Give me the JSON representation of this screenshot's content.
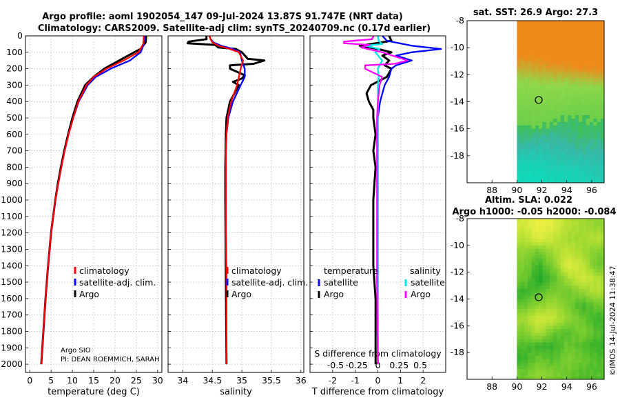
{
  "header": {
    "title_line1": "Argo profile: aoml 1902054_147 09-Jul-2024 13.87S 91.747E (NRT data)",
    "title_line2": "Climatology: CARS2009. Satellite-adj clim: synTS_20240709.nc (0.17d earlier)"
  },
  "credit": {
    "line1": "Argo SIO",
    "line2": "PI: DEAN ROEMMICH, SARAH"
  },
  "stamp": "©IMOS 14-Jul-2024 11:38:47",
  "chart_data": [
    {
      "type": "line",
      "xlabel": "temperature (deg C)",
      "ylim": [
        2050,
        0
      ],
      "xlim": [
        -1,
        31
      ],
      "xticks": [
        0,
        5,
        10,
        15,
        20,
        25,
        30
      ],
      "yticks": [
        0,
        100,
        200,
        300,
        400,
        500,
        600,
        700,
        800,
        900,
        1000,
        1100,
        1200,
        1300,
        1400,
        1500,
        1600,
        1700,
        1800,
        1900,
        2000
      ],
      "grid": true,
      "legend": {
        "position": "bottom-right",
        "entries": [
          "climatology",
          "satellite-adj. clim.",
          "Argo"
        ]
      },
      "series": [
        {
          "name": "climatology",
          "color": "#ff0000",
          "depth": [
            0,
            50,
            100,
            150,
            200,
            250,
            300,
            400,
            500,
            600,
            700,
            800,
            900,
            1000,
            1200,
            1400,
            1600,
            1800,
            2000
          ],
          "values": [
            26.8,
            26.6,
            25.5,
            22.0,
            18.0,
            15.0,
            13.3,
            11.4,
            10.2,
            9.1,
            8.2,
            7.4,
            6.7,
            6.0,
            5.0,
            4.3,
            3.7,
            3.2,
            2.7
          ]
        },
        {
          "name": "satellite-adj. clim.",
          "color": "#0000ff",
          "depth": [
            0,
            50,
            100,
            150,
            200,
            250,
            300,
            400,
            500,
            600,
            700,
            800,
            900,
            1000,
            1200,
            1400,
            1600,
            1800,
            2000
          ],
          "values": [
            27.0,
            26.8,
            26.0,
            23.5,
            19.0,
            15.5,
            13.6,
            11.5,
            10.2,
            9.1,
            8.2,
            7.4,
            6.7,
            6.0,
            5.0,
            4.3,
            3.7,
            3.2,
            2.7
          ]
        },
        {
          "name": "Argo",
          "color": "#000000",
          "depth": [
            0,
            40,
            80,
            100,
            150,
            200,
            250,
            300,
            400,
            500,
            600,
            700,
            800,
            900,
            1000,
            1200,
            1400,
            1600,
            1800,
            2000
          ],
          "values": [
            27.3,
            27.2,
            26.0,
            24.5,
            21.0,
            17.5,
            15.0,
            13.0,
            11.2,
            10.0,
            9.0,
            8.1,
            7.3,
            6.6,
            6.0,
            5.0,
            4.3,
            3.7,
            3.2,
            2.7
          ]
        }
      ]
    },
    {
      "type": "line",
      "xlabel": "salinity",
      "ylim": [
        2050,
        0
      ],
      "xlim": [
        33.75,
        36.05
      ],
      "xticks": [
        34,
        34.5,
        35,
        35.5,
        36
      ],
      "grid": true,
      "legend": {
        "position": "bottom-right",
        "entries": [
          "climatology",
          "satellite-adj. clim.",
          "Argo"
        ]
      },
      "series": [
        {
          "name": "climatology",
          "color": "#ff0000",
          "depth": [
            0,
            20,
            40,
            60,
            80,
            100,
            150,
            200,
            250,
            300,
            400,
            500,
            600,
            700,
            800,
            1000,
            1200,
            1500,
            2000
          ],
          "values": [
            34.45,
            34.47,
            34.5,
            34.6,
            34.8,
            34.95,
            35.02,
            34.98,
            34.95,
            34.92,
            34.82,
            34.76,
            34.74,
            34.73,
            34.73,
            34.73,
            34.73,
            34.74,
            34.74
          ]
        },
        {
          "name": "satellite-adj. clim.",
          "color": "#0000ff",
          "depth": [
            0,
            20,
            40,
            60,
            80,
            100,
            150,
            200,
            250,
            300,
            400,
            500,
            600,
            700,
            800,
            1000,
            1200,
            1500,
            2000
          ],
          "values": [
            34.45,
            34.47,
            34.52,
            34.65,
            34.85,
            34.97,
            35.0,
            35.05,
            35.05,
            34.98,
            34.85,
            34.77,
            34.74,
            34.73,
            34.73,
            34.73,
            34.73,
            34.74,
            34.74
          ]
        },
        {
          "name": "Argo",
          "color": "#000000",
          "depth": [
            0,
            20,
            35,
            45,
            55,
            70,
            80,
            100,
            140,
            150,
            170,
            180,
            200,
            240,
            260,
            280,
            300,
            400,
            500,
            600,
            800,
            1000,
            1500,
            2000
          ],
          "values": [
            34.4,
            34.4,
            34.1,
            34.08,
            34.55,
            34.6,
            34.9,
            35.0,
            35.1,
            35.38,
            35.2,
            34.8,
            34.8,
            35.05,
            35.0,
            34.85,
            34.95,
            34.8,
            34.74,
            34.73,
            34.72,
            34.72,
            34.73,
            34.74
          ]
        }
      ]
    },
    {
      "type": "line",
      "xlabel": "T difference from climatology",
      "top_axis_label": "S difference from climatology",
      "ylim": [
        2050,
        0
      ],
      "xlim": [
        -3,
        3
      ],
      "xticks": [
        -2,
        -1,
        0,
        1,
        2
      ],
      "top_xlim": [
        -0.8,
        0.8
      ],
      "top_xticks": [
        -0.5,
        -0.25,
        0,
        0.25,
        0.5
      ],
      "top_xtick_labels": [
        "-0.5",
        "-0.25",
        "0",
        "0.25",
        "0.5"
      ],
      "grid": true,
      "legend_temperature": {
        "heading": "temperature",
        "position": "bottom-left",
        "entries": [
          "satellite",
          "Argo"
        ]
      },
      "legend_salinity": {
        "heading": "salinity",
        "position": "bottom-right",
        "entries": [
          "satellite",
          "Argo"
        ]
      },
      "series": [
        {
          "name": "satellite",
          "group": "temperature",
          "color": "#0000ff",
          "axis": "T",
          "depth": [
            0,
            30,
            60,
            80,
            100,
            120,
            150,
            180,
            200,
            250,
            300,
            350,
            400,
            500,
            600,
            800,
            1000,
            2000
          ],
          "values": [
            0.2,
            0.4,
            1.5,
            2.8,
            1.5,
            0.8,
            1.5,
            0.8,
            0.6,
            0.5,
            0.3,
            0.2,
            0.1,
            0,
            0,
            0,
            0,
            0
          ]
        },
        {
          "name": "Argo",
          "group": "temperature",
          "color": "#000000",
          "axis": "T",
          "depth": [
            0,
            30,
            50,
            60,
            80,
            100,
            120,
            150,
            180,
            200,
            250,
            300,
            350,
            400,
            450,
            500,
            600,
            700,
            800,
            1000,
            1200,
            1400,
            1600,
            1800,
            2000
          ],
          "values": [
            0.5,
            0.6,
            -0.3,
            -0.8,
            0,
            0.6,
            0.2,
            0.5,
            0.3,
            0.6,
            0.4,
            -0.3,
            -0.5,
            -0.4,
            -0.2,
            -0.2,
            -0.1,
            -0.2,
            -0.1,
            -0.2,
            -0.2,
            -0.2,
            -0.1,
            -0.1,
            -0.1
          ]
        },
        {
          "name": "satellite",
          "group": "salinity",
          "color": "#00e5ee",
          "axis": "S",
          "depth": [
            0,
            30,
            50,
            60,
            80,
            100,
            150,
            200,
            250,
            300,
            400,
            500,
            600,
            800,
            1000,
            2000
          ],
          "values": [
            0.0,
            0.01,
            0.05,
            -0.15,
            0.02,
            -0.03,
            0.05,
            0.0,
            0.01,
            0.0,
            0.0,
            0.0,
            0.0,
            0.0,
            0.0,
            0.0
          ]
        },
        {
          "name": "Argo",
          "group": "salinity",
          "color": "#ff00ff",
          "axis": "S",
          "depth": [
            0,
            20,
            35,
            45,
            55,
            70,
            100,
            150,
            170,
            180,
            200,
            250,
            300,
            400,
            500,
            600,
            800,
            1000,
            1500,
            2000
          ],
          "values": [
            -0.05,
            -0.07,
            -0.4,
            -0.4,
            -0.1,
            -0.2,
            0.05,
            0.35,
            0.2,
            -0.15,
            -0.15,
            0.05,
            0.02,
            0.0,
            -0.01,
            -0.01,
            -0.01,
            -0.01,
            -0.01,
            0.0
          ]
        }
      ]
    },
    {
      "type": "heatmap",
      "title": "sat. SST: 26.9 Argo: 27.3",
      "xlim": [
        86,
        97
      ],
      "ylim": [
        -20,
        -8
      ],
      "xticks": [
        88,
        90,
        92,
        94,
        96
      ],
      "yticks": [
        -18,
        -16,
        -14,
        -12,
        -10,
        -8
      ],
      "float_position": [
        91.75,
        -13.87
      ],
      "rows_lat": [
        -8.5,
        -9.5,
        -10.5,
        -11.5,
        -12.5,
        -13.5,
        -14.5,
        -15.5,
        -16.5,
        -17.5,
        -18.5,
        -19.5
      ],
      "values": [
        [
          29.0,
          29.1,
          29.2,
          29.3,
          29.3,
          29.4
        ],
        [
          28.8,
          28.9,
          29.0,
          29.1,
          29.2,
          29.3
        ],
        [
          28.5,
          28.6,
          28.7,
          28.8,
          28.9,
          29.0
        ],
        [
          28.0,
          28.1,
          28.2,
          28.3,
          28.4,
          28.5
        ],
        [
          27.3,
          27.4,
          27.5,
          27.5,
          27.6,
          27.7
        ],
        [
          26.9,
          27.0,
          27.0,
          26.9,
          26.8,
          26.8
        ],
        [
          26.4,
          26.5,
          26.5,
          26.3,
          26.2,
          26.3
        ],
        [
          26.1,
          26.2,
          26.0,
          25.9,
          25.9,
          26.0
        ],
        [
          25.8,
          25.7,
          25.6,
          25.7,
          25.9,
          25.8
        ],
        [
          25.4,
          25.3,
          25.4,
          25.5,
          25.6,
          25.5
        ],
        [
          25.0,
          25.0,
          25.1,
          25.2,
          25.2,
          25.3
        ],
        [
          24.8,
          24.8,
          24.9,
          24.9,
          25.0,
          25.1
        ]
      ],
      "colors": {
        "warm": "#f08a1a",
        "mid": "#8ed84a",
        "cool": "#10d8b8"
      }
    },
    {
      "type": "heatmap",
      "title": "Altim. SLA: 0.022",
      "subtitle": "Argo h1000: -0.05 h2000: -0.084",
      "xlim": [
        86,
        97
      ],
      "ylim": [
        -20,
        -8
      ],
      "xticks": [
        88,
        90,
        92,
        94,
        96
      ],
      "yticks": [
        -18,
        -16,
        -14,
        -12,
        -10,
        -8
      ],
      "float_position": [
        91.75,
        -13.87
      ],
      "rows_lat": [
        -8.5,
        -9.5,
        -10.5,
        -11.5,
        -12.5,
        -13.5,
        -14.5,
        -15.5,
        -16.5,
        -17.5,
        -18.5,
        -19.5
      ],
      "values": [
        [
          0.08,
          0.1,
          0.09,
          0.06,
          0.05,
          0.04
        ],
        [
          0.06,
          0.09,
          0.07,
          0.05,
          0.05,
          0.06
        ],
        [
          0.04,
          0.02,
          0.05,
          0.07,
          0.05,
          0.03
        ],
        [
          0.03,
          0.0,
          0.03,
          0.09,
          0.07,
          0.02
        ],
        [
          0.02,
          -0.01,
          0.01,
          0.05,
          0.08,
          0.06
        ],
        [
          0.0,
          0.01,
          0.03,
          0.02,
          0.04,
          0.06
        ],
        [
          0.02,
          0.04,
          0.05,
          0.03,
          0.0,
          0.02
        ],
        [
          0.05,
          0.08,
          0.07,
          0.04,
          0.02,
          0.0
        ],
        [
          0.03,
          0.06,
          0.02,
          0.01,
          0.03,
          0.01
        ],
        [
          0.01,
          0.0,
          0.0,
          0.02,
          0.01,
          0.0
        ],
        [
          0.0,
          0.02,
          0.01,
          0.03,
          0.02,
          0.01
        ],
        [
          0.02,
          0.04,
          0.03,
          0.02,
          0.01,
          0.01
        ]
      ],
      "colors": {
        "high": "#eef044",
        "mid": "#b6e034",
        "low": "#1ea82a"
      }
    }
  ]
}
